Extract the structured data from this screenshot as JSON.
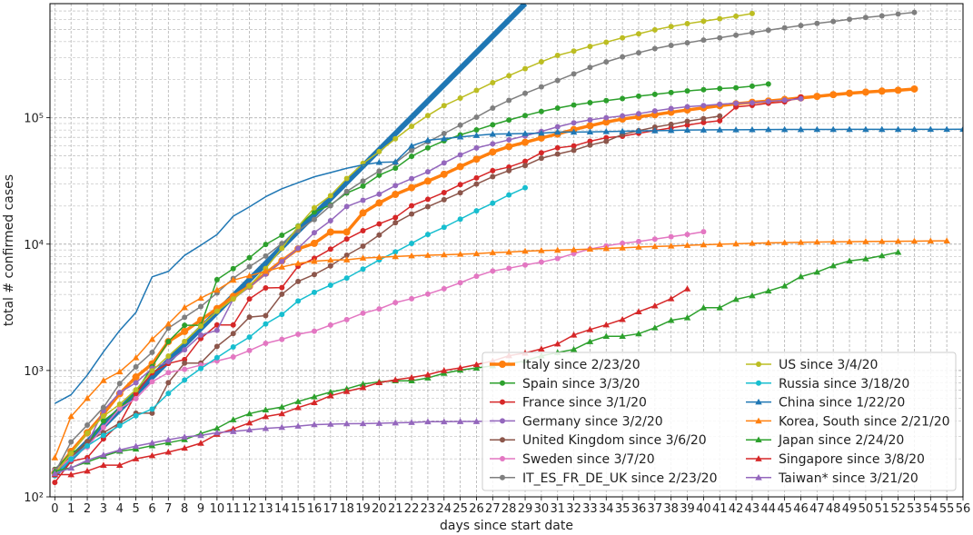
{
  "chart_data": {
    "type": "line",
    "xlabel": "days since start date",
    "ylabel": "total # confirmed cases",
    "xlim": [
      -0.3,
      56
    ],
    "ylim": [
      100,
      800000
    ],
    "yscale": "log",
    "grid": true,
    "legend_position": "lower-right",
    "x_ticks": [
      0,
      1,
      2,
      3,
      4,
      5,
      6,
      7,
      8,
      9,
      10,
      11,
      12,
      13,
      14,
      15,
      16,
      17,
      18,
      19,
      20,
      21,
      22,
      23,
      24,
      25,
      26,
      27,
      28,
      29,
      30,
      31,
      32,
      33,
      34,
      35,
      36,
      37,
      38,
      39,
      40,
      41,
      42,
      43,
      44,
      45,
      46,
      47,
      48,
      49,
      50,
      51,
      52,
      53,
      54,
      55,
      56
    ],
    "y_ticks": [
      {
        "value": 100,
        "label": "10²"
      },
      {
        "value": 1000,
        "label": "10³"
      },
      {
        "value": 10000,
        "label": "10⁴"
      },
      {
        "value": 100000,
        "label": "10⁵"
      }
    ],
    "reference_line": {
      "color": "#1f77b4",
      "points": [
        [
          0,
          150
        ],
        [
          29,
          800000
        ]
      ]
    },
    "series": [
      {
        "name": "Italy since 2/23/20",
        "color": "#ff7f0e",
        "marker": "circle",
        "emphasis": true,
        "values": [
          155,
          229,
          322,
          453,
          655,
          888,
          1128,
          1694,
          2036,
          2502,
          3089,
          3858,
          4636,
          5883,
          7375,
          9172,
          10149,
          12462,
          12462,
          17660,
          21157,
          24747,
          27980,
          31506,
          35713,
          41035,
          47021,
          53578,
          59138,
          63927,
          69176,
          74386,
          80589,
          86498,
          92472,
          97689,
          101739,
          105792,
          110574,
          115242,
          119827,
          124632,
          128948,
          132547,
          135586,
          139422,
          143626,
          147577,
          152271,
          156363,
          159516,
          162488,
          165155,
          168941
        ]
      },
      {
        "name": "Spain since 3/3/20",
        "color": "#2ca02c",
        "marker": "circle",
        "values": [
          165,
          222,
          259,
          400,
          500,
          673,
          1073,
          1695,
          2277,
          2277,
          5232,
          6391,
          7798,
          9942,
          11748,
          13910,
          17963,
          20410,
          25374,
          28768,
          35136,
          39885,
          49515,
          57786,
          65719,
          73235,
          80110,
          87956,
          95923,
          104118,
          112065,
          119199,
          126168,
          131646,
          136675,
          141942,
          148220,
          153222,
          158273,
          163027,
          166831,
          170099,
          172541,
          177644,
          184948
        ]
      },
      {
        "name": "France since 3/1/20",
        "color": "#d62728",
        "marker": "circle",
        "values": [
          130,
          191,
          204,
          288,
          380,
          656,
          959,
          1136,
          1219,
          1794,
          2293,
          2293,
          3681,
          4496,
          4532,
          6683,
          7715,
          9124,
          10970,
          12758,
          14463,
          16243,
          20123,
          22622,
          25600,
          29551,
          33402,
          38105,
          40708,
          45170,
          52827,
          57749,
          59929,
          65202,
          69500,
          71412,
          75343,
          79163,
          83057,
          87366,
          91738,
          94863,
          121712,
          125394,
          130365,
          133585,
          146075
        ]
      },
      {
        "name": "Germany since 3/2/20",
        "color": "#9467bd",
        "marker": "circle",
        "values": [
          159,
          196,
          262,
          482,
          670,
          799,
          1040,
          1176,
          1457,
          1908,
          2078,
          3675,
          4585,
          5795,
          7272,
          9257,
          12327,
          15320,
          19848,
          22213,
          24873,
          29056,
          32986,
          37323,
          43938,
          50871,
          57695,
          62095,
          66885,
          71808,
          77872,
          84794,
          91159,
          96092,
          100123,
          103374,
          107663,
          113296,
          118181,
          122171,
          124908,
          127854,
          130072,
          131359,
          134753,
          137698,
          141397
        ]
      },
      {
        "name": "United Kingdom since 3/6/20",
        "color": "#8c564b",
        "marker": "circle",
        "values": [
          164,
          207,
          274,
          322,
          384,
          459,
          459,
          802,
          1144,
          1145,
          1551,
          1960,
          2642,
          2716,
          4014,
          5067,
          5745,
          6726,
          8164,
          9640,
          11812,
          14745,
          17312,
          19780,
          22453,
          25481,
          29865,
          34173,
          38168,
          41903,
          47806,
          51608,
          55242,
          60733,
          65077,
          73758,
          78991,
          84279,
          88621,
          93873,
          98476,
          103093
        ]
      },
      {
        "name": "Sweden since 3/7/20",
        "color": "#e377c2",
        "marker": "circle",
        "values": [
          161,
          203,
          248,
          355,
          500,
          599,
          814,
          961,
          1022,
          1103,
          1190,
          1279,
          1439,
          1639,
          1763,
          1934,
          2046,
          2286,
          2526,
          2840,
          3069,
          3447,
          3700,
          4028,
          4435,
          4947,
          5568,
          6131,
          6443,
          6830,
          7206,
          7693,
          8419,
          9141,
          9685,
          10151,
          10483,
          10948,
          11445,
          11927,
          12540
        ]
      },
      {
        "name": "IT_ES_FR_DE_UK since 2/23/20",
        "color": "#7f7f7f",
        "marker": "circle",
        "values": [
          155,
          272,
          370,
          510,
          788,
          1068,
          1391,
          2164,
          2631,
          3204,
          4106,
          5355,
          6623,
          8043,
          10101,
          12856,
          15638,
          20133,
          26099,
          31563,
          37814,
          43894,
          55223,
          64520,
          75014,
          87421,
          101098,
          119181,
          137287,
          155932,
          175542,
          197236,
          222101,
          250063,
          276923,
          303096,
          326845,
          352497,
          373617,
          391657,
          412185,
          428975,
          450042,
          472073,
          493152,
          515346,
          537000,
          558000,
          578000,
          601000,
          622000,
          640000,
          662000,
          682000
        ]
      },
      {
        "name": "US since 3/4/20",
        "color": "#bcbd22",
        "marker": "circle",
        "values": [
          153,
          221,
          319,
          435,
          541,
          704,
          994,
          1301,
          1697,
          2247,
          2943,
          3680,
          4663,
          6411,
          9259,
          13789,
          19383,
          24207,
          33072,
          43505,
          53938,
          68211,
          85435,
          104126,
          124686,
          143055,
          164620,
          189618,
          215215,
          244678,
          277161,
          311357,
          336673,
          367004,
          396223,
          429052,
          461437,
          496535,
          526396,
          555313,
          580619,
          607670,
          636350,
          667801
        ]
      },
      {
        "name": "Russia since 3/18/20",
        "color": "#17becf",
        "marker": "circle",
        "values": [
          147,
          199,
          253,
          306,
          367,
          438,
          495,
          658,
          840,
          1036,
          1264,
          1534,
          1836,
          2337,
          2777,
          3548,
          4149,
          4731,
          5389,
          6343,
          7497,
          8672,
          10131,
          11917,
          13584,
          15770,
          18328,
          21102,
          24490,
          27938
        ]
      },
      {
        "name": "China since 1/22/20",
        "color": "#1f77b4",
        "marker": "triangle",
        "plain": true,
        "values": [
          548,
          643,
          920,
          1406,
          2075,
          2877,
          5509,
          6087,
          8141,
          9802,
          11891,
          16630,
          19716,
          23707,
          27440,
          30587,
          34110,
          36814,
          39829,
          42354,
          44386,
          44759,
          59895,
          66358,
          68413,
          70513,
          72434,
          74211,
          74619,
          75077,
          75550,
          77001,
          77022,
          77241,
          77754,
          78166,
          78600,
          78928,
          79356,
          79932,
          80136,
          80261,
          80386,
          80537,
          80690,
          80770,
          80823,
          80860,
          80887,
          80921,
          80932,
          80945,
          80977,
          81003,
          81033,
          81058,
          81102
        ]
      },
      {
        "name": "Korea, South since 2/21/20",
        "color": "#ff7f0e",
        "marker": "triangle",
        "values": [
          204,
          433,
          602,
          833,
          977,
          1261,
          1766,
          2337,
          3150,
          3736,
          4335,
          5186,
          5621,
          6088,
          6593,
          7041,
          7314,
          7478,
          7513,
          7755,
          7869,
          7979,
          8086,
          8162,
          8236,
          8320,
          8413,
          8565,
          8652,
          8799,
          8897,
          8961,
          9037,
          9137,
          9241,
          9332,
          9478,
          9583,
          9661,
          9786,
          9887,
          9976,
          10062,
          10156,
          10237,
          10284,
          10331,
          10384,
          10423,
          10450,
          10480,
          10512,
          10537,
          10564,
          10591,
          10613
        ]
      },
      {
        "name": "Japan since 2/24/20",
        "color": "#2ca02c",
        "marker": "triangle",
        "values": [
          160,
          170,
          189,
          210,
          230,
          239,
          254,
          268,
          284,
          317,
          349,
          408,
          455,
          488,
          514,
          568,
          620,
          675,
          716,
          780,
          814,
          829,
          829,
          873,
          950,
          1007,
          1046,
          1089,
          1128,
          1193,
          1307,
          1387,
          1468,
          1693,
          1866,
          1866,
          1953,
          2178,
          2495,
          2617,
          3139,
          3139,
          3654,
          3906,
          4257,
          4667,
          5530,
          6005,
          6748,
          7370,
          7645,
          8100,
          8626
        ]
      },
      {
        "name": "Singapore since 3/8/20",
        "color": "#d62728",
        "marker": "triangle",
        "values": [
          150,
          150,
          160,
          178,
          178,
          200,
          212,
          226,
          243,
          266,
          313,
          345,
          385,
          432,
          455,
          509,
          558,
          631,
          683,
          732,
          802,
          844,
          879,
          926,
          1000,
          1049,
          1114,
          1189,
          1309,
          1375,
          1481,
          1623,
          1910,
          2108,
          2299,
          2532,
          2918,
          3252,
          3699,
          4427
        ]
      },
      {
        "name": "Taiwan* since 3/21/20",
        "color": "#9467bd",
        "marker": "triangle",
        "values": [
          153,
          169,
          195,
          215,
          235,
          252,
          267,
          283,
          298,
          306,
          322,
          329,
          339,
          348,
          355,
          363,
          373,
          376,
          379,
          380,
          382,
          385,
          388,
          393,
          393,
          395,
          395,
          398
        ]
      }
    ]
  }
}
